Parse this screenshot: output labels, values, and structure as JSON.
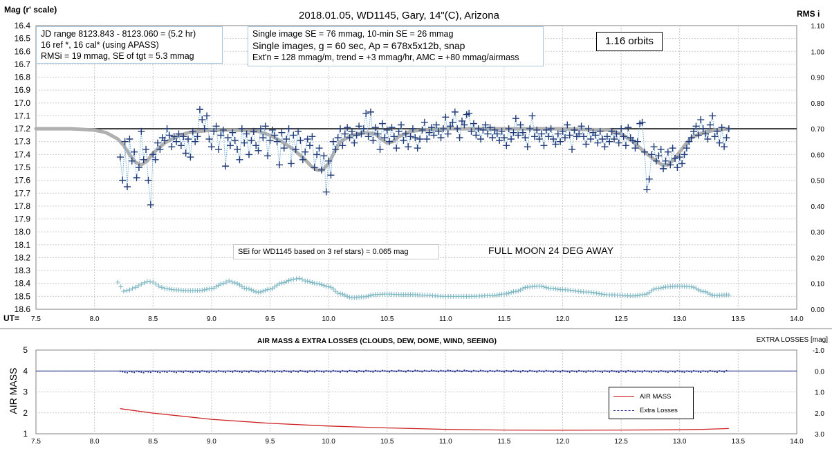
{
  "chart_data": [
    {
      "type": "scatter",
      "title": "2018.01.05,  WD1145, Gary, 14\"(C), Arizona",
      "ylabel": "Mag (r' scale)",
      "y2label": "RMS i",
      "xlabel": "UT=",
      "xlim": [
        7.5,
        14.0
      ],
      "ylim": [
        16.4,
        18.6
      ],
      "y_inverted": true,
      "y2lim": [
        0.0,
        1.1
      ],
      "grid": true,
      "x_ticks": [
        "7.5",
        "8.0",
        "8.5",
        "9.0",
        "9.5",
        "10.0",
        "10.5",
        "11.0",
        "11.5",
        "12.0",
        "12.5",
        "13.0",
        "13.5",
        "14.0"
      ],
      "y_ticks": [
        "16.4",
        "16.5",
        "16.6",
        "16.7",
        "16.8",
        "16.9",
        "17.0",
        "17.1",
        "17.2",
        "17.3",
        "17.4",
        "17.5",
        "17.6",
        "17.7",
        "17.8",
        "17.9",
        "18.0",
        "18.1",
        "18.2",
        "18.3",
        "18.4",
        "18.5",
        "18.6"
      ],
      "y2_ticks": [
        "1.10",
        "1.00",
        "0.90",
        "0.80",
        "0.70",
        "0.60",
        "0.50",
        "0.40",
        "0.30",
        "0.20",
        "0.10",
        "0.00"
      ],
      "reference_line": 17.2,
      "notes": {
        "jd": [
          "JD range  8123.843 - 8123.060  = (5.2 hr)",
          "16 ref *, 16 cal* (using APASS)",
          "RMSi = 19 mmag, SE of tgt = 5.3 mmag"
        ],
        "se": [
          "Single image SE = 76 mmag, 10-min SE = 26 mmag",
          "Single images, g = 60 sec, Ap = 678x5x12b,  snap",
          "Ext'n = 128 mmag/m, trend = +3 mmag/hr, AMC = +80 mmag/airmass"
        ],
        "orbits": "1.16 orbits",
        "sei": "SEi for WD1145 based on 3 ref stars) = 0.065 mag",
        "moon": "FULL MOON 24 DEG AWAY"
      },
      "series": [
        {
          "name": "",
          "color": "#1f3a78",
          "marker": "plus",
          "connect": "dotted-lightblue",
          "x": [
            8.22,
            8.24,
            8.26,
            8.28,
            8.3,
            8.32,
            8.34,
            8.36,
            8.38,
            8.4,
            8.42,
            8.44,
            8.46,
            8.48,
            8.5,
            8.52,
            8.54,
            8.56,
            8.58,
            8.6,
            8.62,
            8.64,
            8.66,
            8.68,
            8.7,
            8.72,
            8.74,
            8.76,
            8.78,
            8.8,
            8.82,
            8.84,
            8.86,
            8.88,
            8.9,
            8.92,
            8.94,
            8.96,
            8.98,
            9.0,
            9.02,
            9.04,
            9.06,
            9.08,
            9.1,
            9.12,
            9.14,
            9.16,
            9.18,
            9.2,
            9.22,
            9.24,
            9.26,
            9.28,
            9.3,
            9.32,
            9.34,
            9.36,
            9.38,
            9.4,
            9.42,
            9.44,
            9.46,
            9.48,
            9.5,
            9.52,
            9.54,
            9.56,
            9.58,
            9.6,
            9.62,
            9.64,
            9.66,
            9.68,
            9.7,
            9.72,
            9.74,
            9.76,
            9.78,
            9.8,
            9.82,
            9.84,
            9.86,
            9.88,
            9.9,
            9.92,
            9.94,
            9.96,
            9.98,
            10.0,
            10.02,
            10.04,
            10.06,
            10.08,
            10.1,
            10.12,
            10.14,
            10.16,
            10.18,
            10.2,
            10.22,
            10.24,
            10.26,
            10.28,
            10.3,
            10.32,
            10.34,
            10.36,
            10.38,
            10.4,
            10.42,
            10.44,
            10.46,
            10.48,
            10.5,
            10.52,
            10.54,
            10.56,
            10.58,
            10.6,
            10.62,
            10.64,
            10.66,
            10.68,
            10.7,
            10.72,
            10.74,
            10.76,
            10.78,
            10.8,
            10.82,
            10.84,
            10.86,
            10.88,
            10.9,
            10.92,
            10.94,
            10.96,
            10.98,
            11.0,
            11.02,
            11.04,
            11.06,
            11.08,
            11.1,
            11.12,
            11.14,
            11.16,
            11.18,
            11.2,
            11.22,
            11.24,
            11.26,
            11.28,
            11.3,
            11.32,
            11.34,
            11.36,
            11.38,
            11.4,
            11.42,
            11.44,
            11.46,
            11.48,
            11.5,
            11.52,
            11.54,
            11.56,
            11.58,
            11.6,
            11.62,
            11.64,
            11.66,
            11.68,
            11.7,
            11.72,
            11.74,
            11.76,
            11.78,
            11.8,
            11.82,
            11.84,
            11.86,
            11.88,
            11.9,
            11.92,
            11.94,
            11.96,
            11.98,
            12.0,
            12.02,
            12.04,
            12.06,
            12.08,
            12.1,
            12.12,
            12.14,
            12.16,
            12.18,
            12.2,
            12.22,
            12.24,
            12.26,
            12.28,
            12.3,
            12.32,
            12.34,
            12.36,
            12.38,
            12.4,
            12.42,
            12.44,
            12.46,
            12.48,
            12.5,
            12.52,
            12.54,
            12.56,
            12.58,
            12.6,
            12.62,
            12.64,
            12.66,
            12.68,
            12.7,
            12.72,
            12.74,
            12.76,
            12.78,
            12.8,
            12.82,
            12.84,
            12.86,
            12.88,
            12.9,
            12.92,
            12.94,
            12.96,
            12.98,
            13.0,
            13.02,
            13.04,
            13.06,
            13.08,
            13.1,
            13.12,
            13.14,
            13.16,
            13.18,
            13.2,
            13.22,
            13.24,
            13.26,
            13.28,
            13.3,
            13.32,
            13.34,
            13.36,
            13.38,
            13.4,
            13.42
          ],
          "y": [
            17.42,
            17.6,
            17.3,
            17.65,
            17.28,
            17.45,
            17.38,
            17.58,
            17.5,
            17.22,
            17.44,
            17.36,
            17.6,
            17.79,
            17.4,
            17.44,
            17.31,
            17.36,
            17.27,
            17.29,
            17.2,
            17.25,
            17.34,
            17.26,
            17.3,
            17.24,
            17.33,
            17.26,
            17.39,
            17.28,
            17.42,
            17.22,
            17.3,
            17.26,
            17.05,
            17.13,
            17.2,
            17.1,
            17.28,
            17.34,
            17.22,
            17.18,
            17.36,
            17.25,
            17.21,
            17.49,
            17.27,
            17.33,
            17.23,
            17.29,
            17.36,
            17.44,
            17.2,
            17.31,
            17.24,
            17.4,
            17.29,
            17.22,
            17.33,
            17.37,
            17.2,
            17.27,
            17.18,
            17.41,
            17.29,
            17.21,
            17.25,
            17.3,
            17.48,
            17.23,
            17.35,
            17.28,
            17.2,
            17.47,
            17.25,
            17.36,
            17.22,
            17.29,
            17.44,
            17.38,
            17.28,
            17.33,
            17.26,
            17.5,
            17.4,
            17.35,
            17.52,
            17.41,
            17.69,
            17.45,
            17.56,
            17.3,
            17.36,
            17.27,
            17.2,
            17.33,
            17.24,
            17.19,
            17.27,
            17.22,
            17.31,
            17.25,
            17.18,
            17.24,
            17.2,
            17.08,
            17.26,
            17.07,
            17.29,
            17.19,
            17.24,
            17.36,
            17.16,
            17.27,
            17.21,
            17.3,
            17.19,
            17.26,
            17.35,
            17.22,
            17.17,
            17.29,
            17.24,
            17.34,
            17.26,
            17.2,
            17.27,
            17.35,
            17.28,
            17.21,
            17.15,
            17.28,
            17.23,
            17.19,
            17.25,
            17.17,
            17.22,
            17.27,
            17.2,
            17.11,
            17.24,
            17.18,
            17.15,
            17.07,
            17.2,
            17.27,
            17.14,
            17.17,
            17.09,
            17.08,
            17.22,
            17.16,
            17.25,
            17.2,
            17.28,
            17.21,
            17.17,
            17.24,
            17.19,
            17.27,
            17.21,
            17.24,
            17.29,
            17.22,
            17.27,
            17.33,
            17.2,
            17.28,
            17.23,
            17.12,
            17.25,
            17.17,
            17.23,
            17.27,
            17.34,
            17.2,
            17.1,
            17.26,
            17.21,
            17.28,
            17.24,
            17.33,
            17.21,
            17.26,
            17.2,
            17.28,
            17.32,
            17.24,
            17.3,
            17.22,
            17.27,
            17.17,
            17.25,
            17.36,
            17.21,
            17.26,
            17.24,
            17.18,
            17.26,
            17.32,
            17.2,
            17.28,
            17.23,
            17.25,
            17.31,
            17.22,
            17.28,
            17.34,
            17.26,
            17.3,
            17.22,
            17.28,
            17.24,
            17.31,
            17.2,
            17.26,
            17.33,
            17.19,
            17.27,
            17.29,
            17.35,
            17.3,
            17.16,
            17.15,
            17.38,
            17.67,
            17.59,
            17.4,
            17.34,
            17.45,
            17.41,
            17.36,
            17.51,
            17.45,
            17.38,
            17.48,
            17.35,
            17.43,
            17.5,
            17.42,
            17.47,
            17.4,
            17.35,
            17.3,
            17.27,
            17.22,
            17.18,
            17.25,
            17.13,
            17.2,
            17.24,
            17.28,
            17.17,
            17.1,
            17.26,
            17.22,
            17.31,
            17.19,
            17.34,
            17.27,
            17.2
          ]
        },
        {
          "name": "",
          "color": "#b0b0b0",
          "style": "thick-line",
          "x": [
            7.5,
            7.8,
            8.0,
            8.1,
            8.2,
            8.25,
            8.3,
            8.35,
            8.4,
            8.45,
            8.5,
            8.6,
            8.7,
            8.8,
            9.0,
            9.2,
            9.4,
            9.5,
            9.6,
            9.7,
            9.8,
            9.85,
            9.9,
            9.95,
            10.0,
            10.05,
            10.1,
            10.2,
            10.3,
            10.4,
            10.45,
            10.5,
            10.55,
            10.6,
            10.7,
            10.8,
            11.0,
            11.5,
            12.0,
            12.4,
            12.5,
            12.6,
            12.7,
            12.8,
            12.85,
            12.9,
            12.95,
            13.0,
            13.05,
            13.1,
            13.2,
            13.3,
            13.42
          ],
          "y": [
            17.2,
            17.2,
            17.21,
            17.23,
            17.28,
            17.33,
            17.4,
            17.46,
            17.48,
            17.45,
            17.39,
            17.31,
            17.26,
            17.23,
            17.21,
            17.21,
            17.22,
            17.25,
            17.3,
            17.36,
            17.44,
            17.49,
            17.52,
            17.52,
            17.47,
            17.38,
            17.3,
            17.25,
            17.23,
            17.24,
            17.28,
            17.31,
            17.3,
            17.26,
            17.22,
            17.21,
            17.2,
            17.2,
            17.2,
            17.21,
            17.24,
            17.3,
            17.38,
            17.45,
            17.48,
            17.48,
            17.44,
            17.38,
            17.32,
            17.27,
            17.23,
            17.21,
            17.2
          ]
        },
        {
          "name": "",
          "color": "#7fb8c4",
          "marker": "plus",
          "axis": "y2",
          "x": [
            8.2,
            8.25,
            8.3,
            8.35,
            8.4,
            8.45,
            8.5,
            8.55,
            8.6,
            8.7,
            8.8,
            8.9,
            9.0,
            9.1,
            9.15,
            9.2,
            9.3,
            9.4,
            9.5,
            9.6,
            9.7,
            9.75,
            9.8,
            9.9,
            10.0,
            10.1,
            10.2,
            10.3,
            10.4,
            10.5,
            10.6,
            10.7,
            10.8,
            11.0,
            11.2,
            11.4,
            11.5,
            11.6,
            11.7,
            11.8,
            11.9,
            12.0,
            12.2,
            12.4,
            12.6,
            12.7,
            12.8,
            12.9,
            13.0,
            13.1,
            13.2,
            13.3,
            13.4,
            13.42
          ],
          "y": [
            0.105,
            0.07,
            0.075,
            0.085,
            0.097,
            0.108,
            0.105,
            0.09,
            0.08,
            0.075,
            0.072,
            0.073,
            0.08,
            0.1,
            0.11,
            0.102,
            0.08,
            0.066,
            0.078,
            0.102,
            0.116,
            0.12,
            0.11,
            0.1,
            0.088,
            0.06,
            0.045,
            0.048,
            0.057,
            0.059,
            0.057,
            0.057,
            0.055,
            0.05,
            0.05,
            0.053,
            0.059,
            0.069,
            0.086,
            0.09,
            0.081,
            0.076,
            0.067,
            0.056,
            0.052,
            0.057,
            0.08,
            0.087,
            0.09,
            0.087,
            0.069,
            0.053,
            0.056,
            0.055
          ]
        }
      ]
    },
    {
      "type": "line",
      "title": "AIR MASS & EXTRA LOSSES (CLOUDS, DEW, DOME, WIND, SEEING)",
      "ylabel": "AIR MASS",
      "y2label": "EXTRA LOSSES [mag]",
      "xlim": [
        7.5,
        14.0
      ],
      "ylim": [
        1,
        5
      ],
      "y2lim": [
        -1.0,
        3.0
      ],
      "y2_inverted": true,
      "grid": true,
      "legend_position": "bottom-right",
      "x_ticks": [
        "7.5",
        "8.0",
        "8.5",
        "9.0",
        "9.5",
        "10.0",
        "10.5",
        "11.0",
        "11.5",
        "12.0",
        "12.5",
        "13.0",
        "13.5",
        "14.0"
      ],
      "y_ticks": [
        "5",
        "4",
        "3",
        "2",
        "1"
      ],
      "y2_ticks": [
        "-1.0",
        "0.0",
        "1.0",
        "2.0",
        "3.0"
      ],
      "series": [
        {
          "name": "AIR MASS",
          "color": "#cc2020",
          "x": [
            8.22,
            8.5,
            9.0,
            9.5,
            10.0,
            10.5,
            11.0,
            11.5,
            12.0,
            12.5,
            12.9,
            13.2,
            13.42
          ],
          "y": [
            2.2,
            1.99,
            1.69,
            1.5,
            1.37,
            1.28,
            1.21,
            1.18,
            1.17,
            1.18,
            1.19,
            1.21,
            1.25
          ]
        },
        {
          "name": "Extra Losses",
          "color": "#1a2a8a",
          "axis": "y2",
          "x": [
            8.22,
            9.0,
            10.0,
            11.0,
            12.0,
            13.0,
            13.42
          ],
          "y": [
            0.05,
            0.03,
            0.02,
            0.0,
            0.02,
            0.03,
            0.02
          ]
        }
      ]
    }
  ]
}
